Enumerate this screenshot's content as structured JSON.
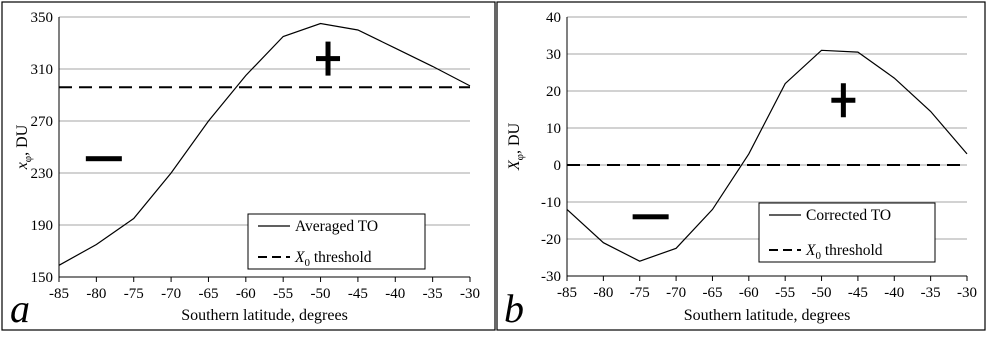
{
  "chart_data": [
    {
      "panel_label": "a",
      "type": "line",
      "xlabel": "Southern latitude, degrees",
      "ylabel": "x",
      "ylabel_sub": "φ",
      "ylabel_unit": ", DU",
      "xlim": [
        -85,
        -30
      ],
      "ylim": [
        150,
        350
      ],
      "xticks": [
        "-85",
        "-80",
        "-75",
        "-70",
        "-65",
        "-60",
        "-55",
        "-50",
        "-45",
        "-40",
        "-35",
        "-30"
      ],
      "yticks": [
        "150",
        "190",
        "230",
        "270",
        "310",
        "350"
      ],
      "grid": "horizontal",
      "legend_position": "bottom-right",
      "series": [
        {
          "name": "Averaged TO",
          "style": "solid",
          "x": [
            -85,
            -80,
            -75,
            -70,
            -65,
            -60,
            -55,
            -50,
            -45,
            -40,
            -35,
            -30
          ],
          "y": [
            159,
            175,
            195,
            230,
            270,
            305,
            335,
            345,
            340,
            326,
            312,
            297
          ]
        },
        {
          "name_prefix": "X",
          "name_sub": "0",
          "name_suffix": " threshold",
          "style": "dashed",
          "x": [
            -85,
            -30
          ],
          "y": [
            296,
            296
          ]
        }
      ],
      "annotations": [
        {
          "text": "+",
          "x": -49,
          "y": 318
        },
        {
          "text": "−",
          "x": -79,
          "y": 241
        }
      ]
    },
    {
      "panel_label": "b",
      "type": "line",
      "xlabel": "Southern latitude, degrees",
      "ylabel": "X",
      "ylabel_sub": "φ",
      "ylabel_unit": ", DU",
      "xlim": [
        -85,
        -30
      ],
      "ylim": [
        -30,
        40
      ],
      "xticks": [
        "-85",
        "-80",
        "-75",
        "-70",
        "-65",
        "-60",
        "-55",
        "-50",
        "-45",
        "-40",
        "-35",
        "-30"
      ],
      "yticks": [
        "-30",
        "-20",
        "-10",
        "0",
        "10",
        "20",
        "30",
        "40"
      ],
      "grid": "horizontal",
      "legend_position": "bottom-right",
      "series": [
        {
          "name": "Corrected TO",
          "style": "solid",
          "x": [
            -85,
            -80,
            -75,
            -70,
            -65,
            -60,
            -55,
            -50,
            -45,
            -40,
            -35,
            -30
          ],
          "y": [
            -12,
            -21,
            -26,
            -22.5,
            -12,
            3,
            22,
            31,
            30.5,
            23.5,
            14.5,
            3
          ]
        },
        {
          "name_prefix": "X",
          "name_sub": "0",
          "name_suffix": " threshold",
          "style": "dashed",
          "x": [
            -85,
            -30
          ],
          "y": [
            0,
            0
          ]
        }
      ],
      "annotations": [
        {
          "text": "+",
          "x": -47,
          "y": 17.5
        },
        {
          "text": "−",
          "x": -73.5,
          "y": -14
        }
      ]
    }
  ]
}
